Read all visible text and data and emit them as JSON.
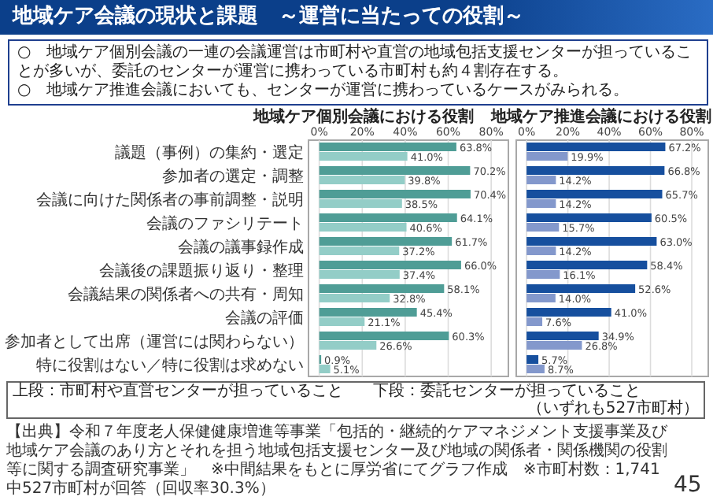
{
  "chart_data": [
    {
      "type": "other",
      "title": "地域ケア会議の現状と課題　～運営に当たっての役割～",
      "annotations": [
        "○　地域ケア個別会議の一連の会議運営は市町村や直営の地域包括支援センターが担っていることが多いが、委託のセンターが運営に携わっている市町村も約４割存在する。",
        "○　地域ケア推進会議においても、センターが運営に携わっているケースがみられる。",
        "【出典】令和７年度老人保健健康増進等事業「包括的・継続的ケアマネジメント支援事業及び地域ケア会議のあり方とそれを担う地域包括支援センター及び地域の関係者・関係機関の役割等に関する調査研究事業」　※中間結果をもとに厚労省にてグラフ作成　※市町村数：1,741中527市町村が回答（回収率30.3%）",
        "45"
      ]
    },
    {
      "type": "bar",
      "orientation": "horizontal",
      "title": "地域ケア個別会議における役割",
      "categories": [
        "議題（事例）の集約・選定",
        "参加者の選定・調整",
        "会議に向けた関係者の事前調整・説明",
        "会議のファシリテート",
        "会議の議事録作成",
        "会議後の課題振り返り・整理",
        "会議結果の関係者への共有・周知",
        "会議の評価",
        "参加者として出席（運営には関わらない）",
        "特に役割はない／特に役割は求めない"
      ],
      "series": [
        {
          "color": "#4f9d96",
          "values": [
            63.8,
            70.2,
            70.4,
            64.1,
            61.7,
            66.0,
            58.1,
            45.4,
            60.3,
            0.9
          ],
          "value_labels": [
            "63.8%",
            "70.2%",
            "70.4%",
            "64.1%",
            "61.7%",
            "66.0%",
            "58.1%",
            "45.4%",
            "60.3%",
            "0.9%"
          ]
        },
        {
          "color": "#93cdc7",
          "values": [
            41.0,
            39.8,
            38.5,
            40.6,
            37.2,
            37.4,
            32.8,
            21.1,
            26.6,
            5.1
          ],
          "value_labels": [
            "41.0%",
            "39.8%",
            "38.5%",
            "40.6%",
            "37.2%",
            "37.4%",
            "32.8%",
            "21.1%",
            "26.6%",
            "5.1%"
          ]
        }
      ],
      "xlim": [
        -5,
        88
      ],
      "xticks": [
        {
          "value": 0,
          "label": "0%"
        },
        {
          "value": 20,
          "label": "20%"
        },
        {
          "value": 40,
          "label": "40%"
        },
        {
          "value": 60,
          "label": "60%"
        },
        {
          "value": 80,
          "label": "80%"
        }
      ],
      "grid": "x"
    },
    {
      "type": "bar",
      "orientation": "horizontal",
      "title": "地域ケア推進会議における役割",
      "categories": [
        null,
        null,
        null,
        null,
        null,
        null,
        null,
        null,
        null,
        null
      ],
      "tick_labels": "x",
      "series": [
        {
          "color": "#164f9e",
          "values": [
            67.2,
            66.8,
            65.7,
            60.5,
            63.0,
            58.4,
            52.6,
            41.0,
            34.9,
            5.7
          ],
          "value_labels": [
            "67.2%",
            "66.8%",
            "65.7%",
            "60.5%",
            "63.0%",
            "58.4%",
            "52.6%",
            "41.0%",
            "34.9%",
            "5.7%"
          ]
        },
        {
          "color": "#8398cc",
          "values": [
            19.9,
            14.2,
            14.2,
            15.7,
            14.2,
            16.1,
            14.0,
            7.6,
            26.8,
            8.7
          ],
          "value_labels": [
            "19.9%",
            "14.2%",
            "14.2%",
            "15.7%",
            "14.2%",
            "16.1%",
            "14.0%",
            "7.6%",
            "26.8%",
            "8.7%"
          ]
        }
      ],
      "xlim": [
        -5,
        88
      ],
      "xticks": [
        {
          "value": 0,
          "label": "0%"
        },
        {
          "value": 20,
          "label": "20%"
        },
        {
          "value": 40,
          "label": "40%"
        },
        {
          "value": 60,
          "label": "60%"
        },
        {
          "value": 80,
          "label": "80%"
        }
      ],
      "grid": "x",
      "annotations": [
        "上段：市町村や直営センターが担っていること",
        "下段：委託センターが担っていること",
        "（いずれも527市町村）"
      ]
    }
  ]
}
